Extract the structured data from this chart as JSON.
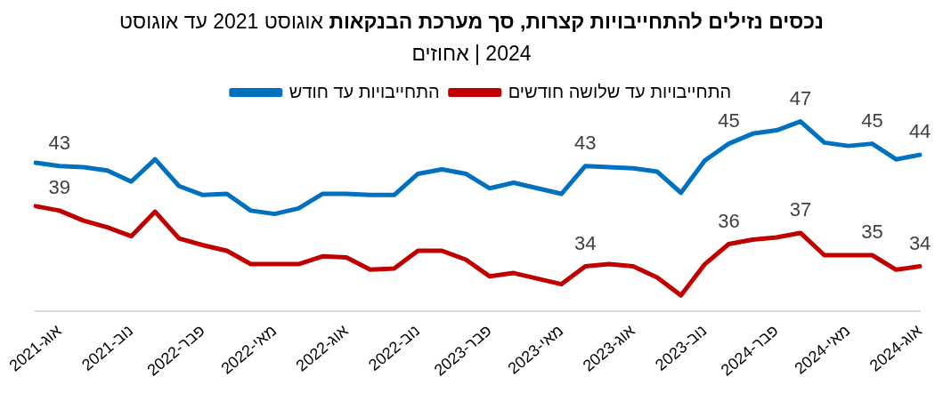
{
  "chart_data": {
    "type": "line",
    "title": "נכסים נזילים להתחייבויות קצרות, סך מערכת הבנקאות",
    "subtitle": "אוגוסט 2021 עד אוגוסט 2024 | אחוזים",
    "categories": [
      null,
      "אוג-2021",
      null,
      null,
      "נוב-2021",
      null,
      null,
      "פבר-2022",
      null,
      null,
      "מאי-2022",
      null,
      null,
      "אוג-2022",
      null,
      null,
      "נוב-2022",
      null,
      null,
      "פבר-2023",
      null,
      null,
      "מאי-2023",
      null,
      null,
      "אוג-2023",
      null,
      null,
      "נוב-2023",
      null,
      null,
      "פבר-2024",
      null,
      null,
      "מאי-2024",
      null,
      null,
      "אוג-2024"
    ],
    "series": [
      {
        "name": "התחייבויות עד חודש",
        "color": "#0070c0",
        "values": [
          43.3,
          43,
          42.9,
          42.6,
          41.6,
          43.6,
          41.2,
          40.4,
          40.5,
          39.0,
          38.7,
          39.2,
          40.5,
          40.5,
          40.4,
          40.4,
          42.3,
          42.7,
          42.3,
          41.0,
          41.5,
          41.0,
          40.5,
          43,
          42.9,
          42.8,
          42.5,
          40.6,
          43.5,
          45,
          45.9,
          46.2,
          47,
          45.1,
          44.8,
          45,
          43.6,
          44
        ],
        "value_labels": [
          null,
          "43",
          null,
          null,
          null,
          null,
          null,
          null,
          null,
          null,
          null,
          null,
          null,
          null,
          null,
          null,
          null,
          null,
          null,
          null,
          null,
          null,
          null,
          "43",
          null,
          null,
          null,
          null,
          null,
          "45",
          null,
          null,
          "47",
          null,
          null,
          "45",
          null,
          "44"
        ]
      },
      {
        "name": "התחייבויות עד שלושה חודשים",
        "color": "#c00000",
        "values": [
          39.4,
          39,
          38.1,
          37.5,
          36.7,
          38.9,
          36.5,
          35.9,
          35.4,
          34.2,
          34.2,
          34.2,
          34.9,
          34.8,
          33.7,
          33.8,
          35.4,
          35.4,
          34.6,
          33.1,
          33.4,
          32.9,
          32.4,
          34,
          34.2,
          34.0,
          33.0,
          31.4,
          34.2,
          36,
          36.4,
          36.6,
          37,
          35.0,
          35.0,
          35,
          33.7,
          34
        ],
        "value_labels": [
          null,
          "39",
          null,
          null,
          null,
          null,
          null,
          null,
          null,
          null,
          null,
          null,
          null,
          null,
          null,
          null,
          null,
          null,
          null,
          null,
          null,
          null,
          null,
          "34",
          null,
          null,
          null,
          null,
          null,
          "36",
          null,
          null,
          "37",
          null,
          null,
          "35",
          null,
          "34"
        ]
      }
    ],
    "tick_labels": "x",
    "legend": "top",
    "line_style": "solid"
  }
}
